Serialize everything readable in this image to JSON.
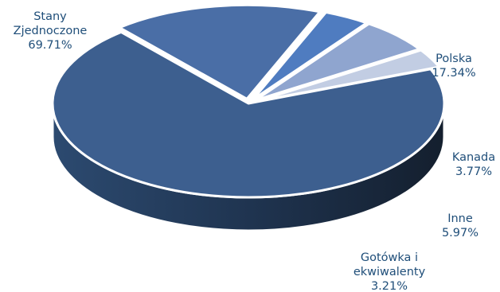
{
  "chart_data": {
    "type": "pie",
    "title": "",
    "slices": [
      {
        "label": [
          "Stany",
          "Zjednoczone"
        ],
        "value": 69.71,
        "value_text": "69.71%",
        "color": "#3d5f8f"
      },
      {
        "label": [
          "Polska"
        ],
        "value": 17.34,
        "value_text": "17.34%",
        "color": "#4a6ea6"
      },
      {
        "label": [
          "Kanada"
        ],
        "value": 3.77,
        "value_text": "3.77%",
        "color": "#4f7cc0"
      },
      {
        "label": [
          "Inne"
        ],
        "value": 5.97,
        "value_text": "5.97%",
        "color": "#8fa5cf"
      },
      {
        "label": [
          "Gotówka i",
          "ekwiwalenty"
        ],
        "value": 3.21,
        "value_text": "3.21%",
        "color": "#c2cde3"
      }
    ],
    "legend": "none",
    "style": "3d-exploded"
  }
}
